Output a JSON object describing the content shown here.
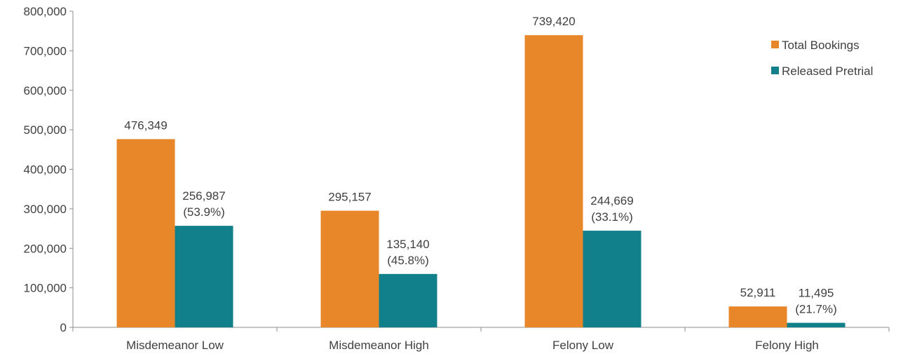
{
  "chart_data": {
    "type": "bar",
    "title": "",
    "xlabel": "",
    "ylabel": "",
    "ylim": [
      0,
      800000
    ],
    "yticks": [
      0,
      100000,
      200000,
      300000,
      400000,
      500000,
      600000,
      700000,
      800000
    ],
    "ytick_labels": [
      "0",
      "100,000",
      "200,000",
      "300,000",
      "400,000",
      "500,000",
      "600,000",
      "700,000",
      "800,000"
    ],
    "categories": [
      "Misdemeanor Low",
      "Misdemeanor High",
      "Felony Low",
      "Felony High"
    ],
    "series": [
      {
        "name": "Total Bookings",
        "color": "#E8862A",
        "values": [
          476349,
          295157,
          739420,
          52911
        ],
        "labels": [
          [
            "476,349"
          ],
          [
            "295,157"
          ],
          [
            "739,420"
          ],
          [
            "52,911"
          ]
        ]
      },
      {
        "name": "Released Pretrial",
        "color": "#12808A",
        "values": [
          256987,
          135140,
          244669,
          11495
        ],
        "labels": [
          [
            "256,987",
            "(53.9%)"
          ],
          [
            "135,140",
            "(45.8%)"
          ],
          [
            "244,669",
            "(33.1%)"
          ],
          [
            "11,495",
            "(21.7%)"
          ]
        ]
      }
    ],
    "grid": false,
    "legend_position": "top-right"
  }
}
